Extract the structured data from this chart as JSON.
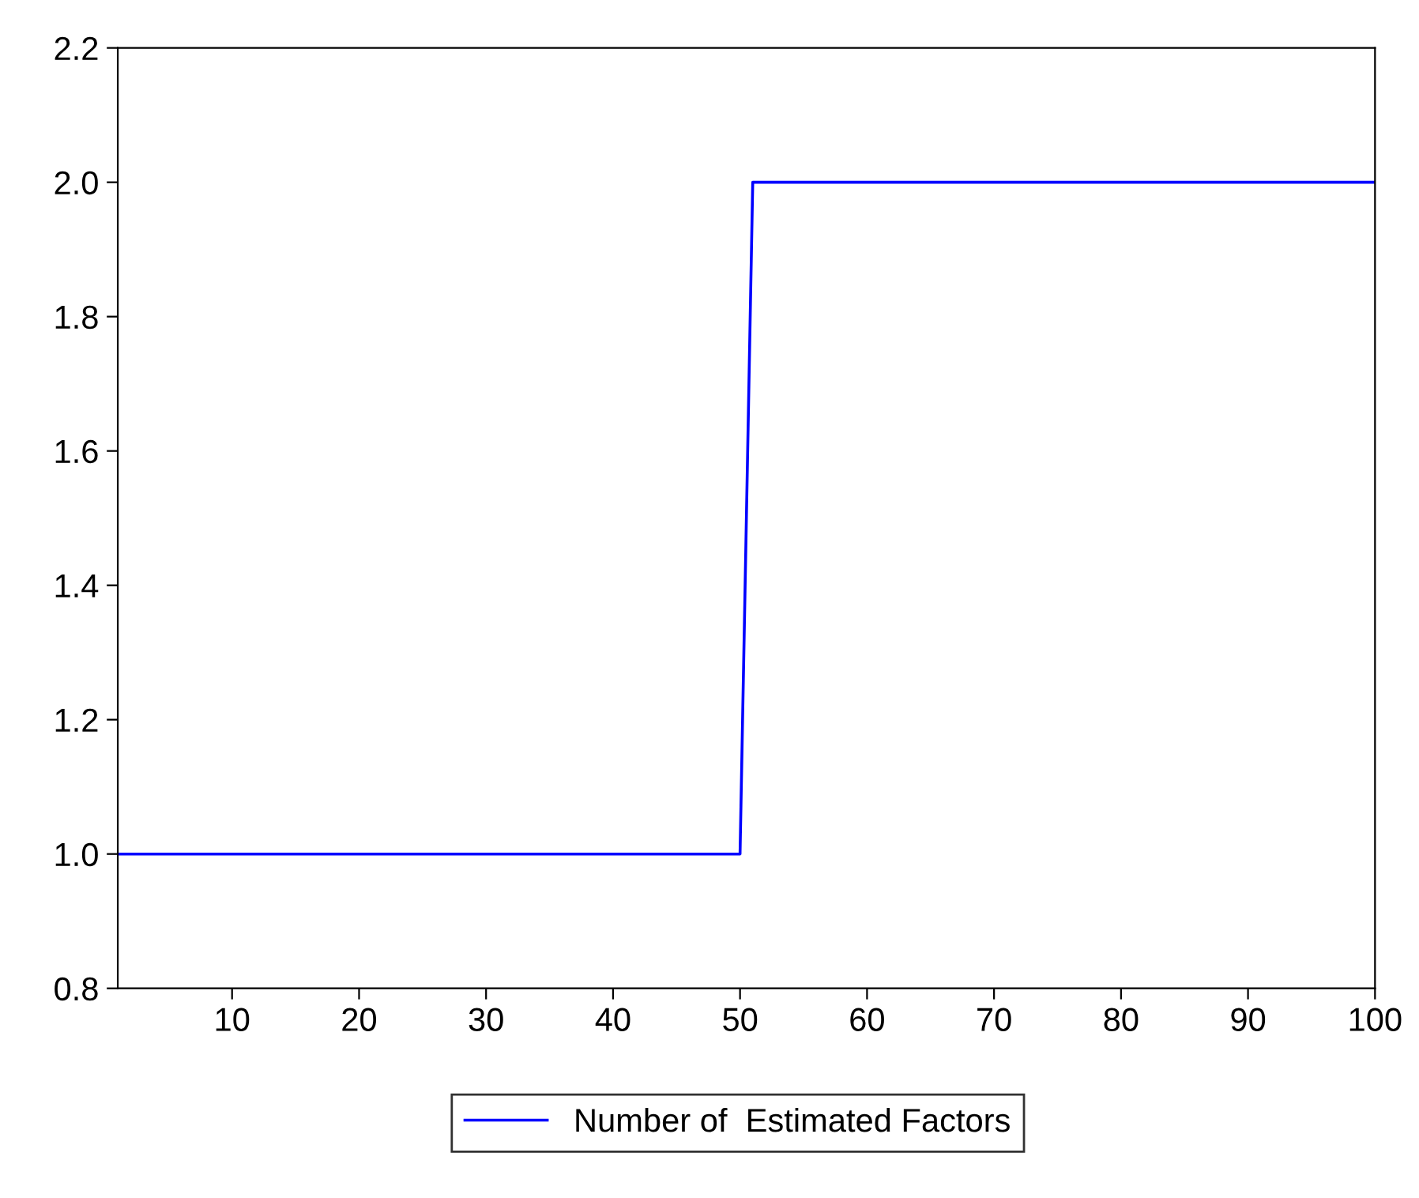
{
  "chart_data": {
    "type": "line",
    "x": [
      1,
      50,
      51,
      100
    ],
    "series": [
      {
        "name": "Number of  Estimated Factors",
        "color": "#0000ff",
        "values": [
          1.0,
          1.0,
          2.0,
          2.0
        ]
      }
    ],
    "xlim": [
      1,
      100
    ],
    "xticks": [
      10,
      20,
      30,
      40,
      50,
      60,
      70,
      80,
      90,
      100
    ],
    "ylim": [
      0.8,
      2.2
    ],
    "yticks": [
      0.8,
      {
        "value": 1,
        "label": "1.0"
      },
      1.2,
      1.4,
      1.6,
      1.8,
      {
        "value": 2,
        "label": "2.0"
      },
      2.2
    ],
    "grid": false,
    "legend": "bottom",
    "line_style": "solid",
    "marker": "none"
  }
}
